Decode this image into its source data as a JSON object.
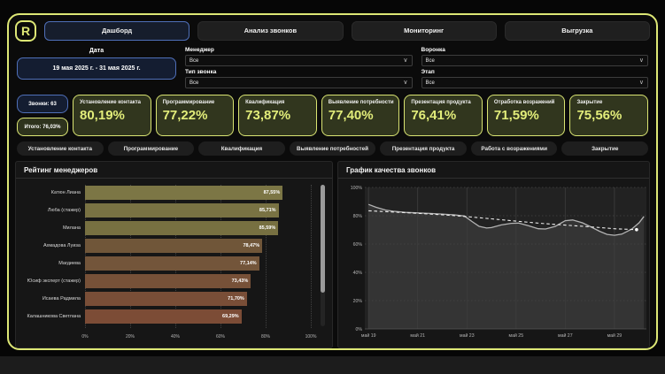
{
  "app": {
    "logo_letter": "R"
  },
  "colors": {
    "accent": "#dde775",
    "blue": "#4f6fb8",
    "value_text": "#e2ed7a"
  },
  "top_tabs": [
    {
      "id": "dashboard",
      "label": "Дашборд",
      "active": true
    },
    {
      "id": "call-analysis",
      "label": "Анализ звонков",
      "active": false
    },
    {
      "id": "monitoring",
      "label": "Мониторинг",
      "active": false
    },
    {
      "id": "export",
      "label": "Выгрузка",
      "active": false
    }
  ],
  "filters": {
    "date": {
      "label": "Дата",
      "value": "19 мая 2025 г. - 31 мая 2025 г."
    },
    "manager": {
      "label": "Менеджер",
      "value": "Все"
    },
    "call_type": {
      "label": "Тип звонка",
      "value": "Все"
    },
    "funnel": {
      "label": "Воронка",
      "value": "Все"
    },
    "stage": {
      "label": "Этап",
      "value": "Все"
    }
  },
  "kpi": {
    "calls": "Звонки: 63",
    "total": "Итого: 76,03%",
    "cards": [
      {
        "id": "contact",
        "label": "Установление контакта",
        "value": "80,19%"
      },
      {
        "id": "programming",
        "label": "Программирование",
        "value": "77,22%"
      },
      {
        "id": "qualification",
        "label": "Квалификация",
        "value": "73,87%"
      },
      {
        "id": "needs",
        "label": "Выявление потребности",
        "value": "77,40%"
      },
      {
        "id": "presentation",
        "label": "Презентация продукта",
        "value": "76,41%"
      },
      {
        "id": "objections",
        "label": "Отработка возражений",
        "value": "71,59%"
      },
      {
        "id": "closing",
        "label": "Закрытие",
        "value": "75,56%"
      }
    ]
  },
  "section_tabs": [
    {
      "id": "contact",
      "label": "Установление контакта"
    },
    {
      "id": "programming",
      "label": "Программирование"
    },
    {
      "id": "qualification",
      "label": "Квалификация"
    },
    {
      "id": "needs",
      "label": "Выявление потребностей"
    },
    {
      "id": "presentation",
      "label": "Презентация продукта"
    },
    {
      "id": "objections",
      "label": "Работа с возражениями"
    },
    {
      "id": "closing",
      "label": "Закрытие"
    }
  ],
  "chart_data": [
    {
      "type": "bar",
      "orientation": "horizontal",
      "title": "Рейтинг менеджеров",
      "categories": [
        "Катюн Лиана",
        "Люба (стажер)",
        "Милана",
        "Ахмадова Луиза",
        "Магдиева",
        "Юсиф эксперт (стажер)",
        "Исаева Радмила",
        "Калашникова Светлана"
      ],
      "values": [
        87.55,
        85.71,
        85.59,
        78.47,
        77.14,
        73.43,
        71.7,
        69.29
      ],
      "value_labels": [
        "87,55%",
        "85,71%",
        "85,59%",
        "78,47%",
        "77,14%",
        "73,43%",
        "71,70%",
        "69,29%"
      ],
      "bar_colors": [
        "#7c7645",
        "#797243",
        "#777041",
        "#705639",
        "#73553a",
        "#775138",
        "#794e37",
        "#7c4c36"
      ],
      "xlim": [
        0,
        100
      ],
      "x_ticks": [
        "0%",
        "20%",
        "40%",
        "60%",
        "80%",
        "100%"
      ],
      "grid": "vertical-dotted"
    },
    {
      "type": "line",
      "title": "График качества звонков",
      "ylim": [
        0,
        100
      ],
      "y_ticks": [
        "0%",
        "20%",
        "40%",
        "60%",
        "80%",
        "100%"
      ],
      "x_ticks": [
        "май 19",
        "май 21",
        "май 23",
        "май 25",
        "май 27",
        "май 29"
      ],
      "x_tick_positions": [
        19,
        21,
        23,
        25,
        27,
        29
      ],
      "x_range": [
        18.85,
        30.3
      ],
      "grid": true,
      "legend": "none",
      "series": [
        {
          "name": "качество звонков",
          "style": "solid-area",
          "color": "#b3b3b3",
          "area_fill": "#343434",
          "points": [
            [
              19,
              88
            ],
            [
              19.3,
              86
            ],
            [
              19.7,
              84
            ],
            [
              20,
              83.2
            ],
            [
              20.5,
              82.4
            ],
            [
              21,
              82
            ],
            [
              21.5,
              81.6
            ],
            [
              22,
              81.2
            ],
            [
              22.5,
              80.6
            ],
            [
              22.9,
              79.8
            ],
            [
              23.2,
              76
            ],
            [
              23.5,
              72.5
            ],
            [
              23.8,
              71.3
            ],
            [
              24,
              71.6
            ],
            [
              24.4,
              73.5
            ],
            [
              24.8,
              74.6
            ],
            [
              25.1,
              74.8
            ],
            [
              25.5,
              73
            ],
            [
              25.9,
              70.8
            ],
            [
              26.2,
              70.6
            ],
            [
              26.6,
              72.5
            ],
            [
              27,
              76.5
            ],
            [
              27.3,
              77
            ],
            [
              27.7,
              75
            ],
            [
              28,
              72.5
            ],
            [
              28.4,
              69
            ],
            [
              28.7,
              66.8
            ],
            [
              29,
              66.2
            ],
            [
              29.3,
              67
            ],
            [
              29.7,
              70.5
            ],
            [
              30,
              75
            ],
            [
              30.2,
              79.5
            ]
          ]
        },
        {
          "name": "тренд",
          "style": "dashed",
          "color": "#ededed",
          "points": [
            [
              19,
              83.5
            ],
            [
              20,
              82.6
            ],
            [
              21,
              81.7
            ],
            [
              22,
              80.7
            ],
            [
              23,
              79.4
            ],
            [
              24,
              77.8
            ],
            [
              25,
              76.2
            ],
            [
              26,
              74.6
            ],
            [
              27,
              73.4
            ],
            [
              28,
              72.2
            ],
            [
              29,
              70.8
            ],
            [
              29.9,
              70.2
            ]
          ]
        }
      ]
    }
  ]
}
